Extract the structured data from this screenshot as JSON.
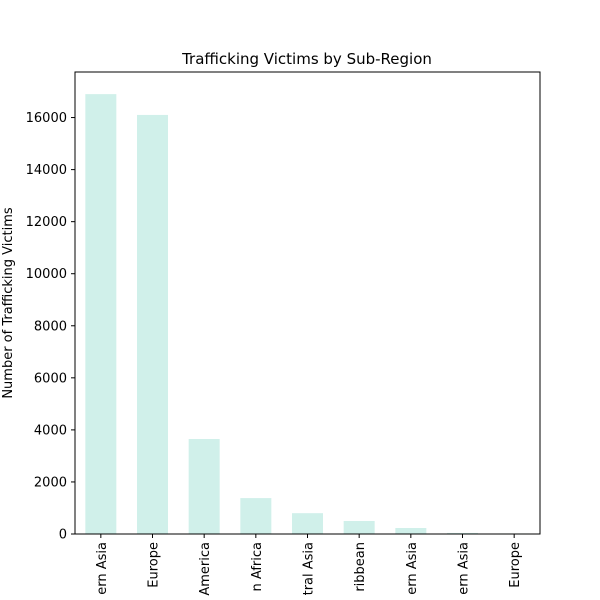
{
  "chart_data": {
    "type": "bar",
    "title": "Trafficking Victims by Sub-Region",
    "xlabel": "",
    "ylabel": "Number of Trafficking Victims",
    "categories": [
      "ern Asia",
      "Europe",
      "America",
      "n Africa",
      "tral Asia",
      "ribbean",
      "ern Asia",
      "ern Asia",
      "Europe"
    ],
    "values": [
      16900,
      16100,
      3650,
      1380,
      800,
      500,
      230,
      40,
      20
    ],
    "yticks": [
      0,
      2000,
      4000,
      6000,
      8000,
      10000,
      12000,
      14000,
      16000
    ],
    "ytick_labels": [
      "0",
      "2000",
      "4000",
      "6000",
      "8000",
      "10000",
      "12000",
      "14000",
      "16000"
    ],
    "ylim": [
      0,
      17750
    ],
    "grid": false,
    "bar_color": "#d0f0ea"
  }
}
